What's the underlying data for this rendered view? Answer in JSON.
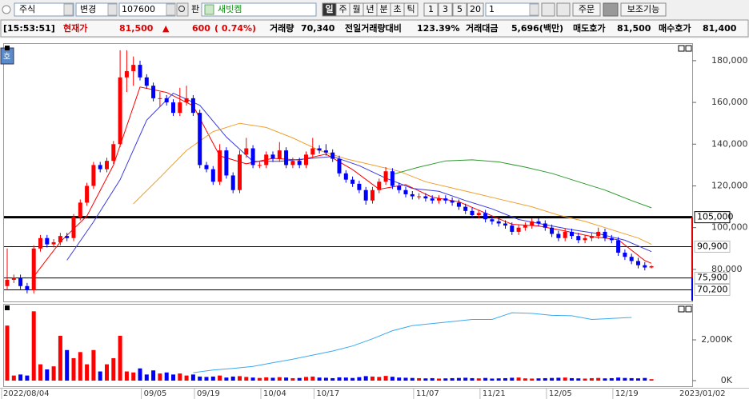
{
  "toolbar": {
    "market": "주식",
    "change": "변경",
    "code": "107600",
    "pan": "판",
    "name": "새빗켐",
    "periods": [
      "일",
      "주",
      "월",
      "년",
      "분",
      "초",
      "틱"
    ],
    "intervals": [
      "1",
      "3",
      "5",
      "20"
    ],
    "count": "1",
    "order": "주문",
    "aux": "보조기능"
  },
  "info_bar": {
    "time": "[15:53:51]",
    "price_label": "현재가",
    "price": "81,500",
    "arrow": "▲",
    "change": "600",
    "change_pct": "( 0.74%)",
    "volume_label": "거래량",
    "volume": "70,340",
    "prev_ratio_label": "전일거래량대비",
    "prev_ratio": "123.39%",
    "amount_label": "거래대금",
    "amount": "5,696(백만)",
    "ask_label": "매도호가",
    "ask": "81,500",
    "bid_label": "매수호가",
    "bid": "81,400"
  },
  "side_button": "호",
  "chart_data": [
    {
      "type": "candlestick",
      "up_color": "#ff0000",
      "down_color": "#0000ff",
      "ylim": [
        65400,
        188000
      ],
      "yticks": [
        {
          "value": 180000,
          "label": "180,000"
        },
        {
          "value": 160000,
          "label": "160,000"
        },
        {
          "value": 140000,
          "label": "140,000"
        },
        {
          "value": 120000,
          "label": "120,000"
        },
        {
          "value": 100000,
          "label": "100,000"
        },
        {
          "value": 80000,
          "label": "80,000"
        }
      ],
      "levels": [
        {
          "value": 105000,
          "label": "105,000"
        },
        {
          "value": 90900,
          "label": "90,900"
        },
        {
          "value": 75900,
          "label": "75,900"
        },
        {
          "value": 70200,
          "label": "70,200"
        }
      ],
      "candles": [
        [
          72000,
          90000,
          70000,
          75000
        ],
        [
          75000,
          77500,
          73500,
          76000
        ],
        [
          76000,
          77500,
          70500,
          72000
        ],
        [
          72000,
          73500,
          68500,
          70000
        ],
        [
          70000,
          91500,
          68500,
          90000
        ],
        [
          90000,
          96500,
          88500,
          95000
        ],
        [
          95000,
          96500,
          90500,
          92000
        ],
        [
          92000,
          94500,
          90500,
          93000
        ],
        [
          93000,
          97500,
          91500,
          96000
        ],
        [
          96000,
          97500,
          93500,
          95000
        ],
        [
          95000,
          106500,
          93500,
          105000
        ],
        [
          105000,
          113500,
          103500,
          112000
        ],
        [
          112000,
          121500,
          110500,
          120000
        ],
        [
          120000,
          131500,
          118500,
          130000
        ],
        [
          130000,
          131500,
          126500,
          128000
        ],
        [
          128000,
          133500,
          126500,
          132000
        ],
        [
          132000,
          141500,
          130500,
          140000
        ],
        [
          140000,
          185000,
          138500,
          172000
        ],
        [
          172000,
          185000,
          165000,
          175000
        ],
        [
          175000,
          182000,
          168000,
          178000
        ],
        [
          178000,
          180000,
          170500,
          172000
        ],
        [
          172000,
          173500,
          166500,
          168000
        ],
        [
          168000,
          169500,
          160500,
          162000
        ],
        [
          162000,
          165000,
          158000,
          162000
        ],
        [
          162000,
          163500,
          158500,
          160000
        ],
        [
          160000,
          161500,
          153500,
          155000
        ],
        [
          155000,
          167000,
          153500,
          160000
        ],
        [
          160000,
          168000,
          158500,
          162000
        ],
        [
          162000,
          163500,
          153500,
          155000
        ],
        [
          155000,
          156500,
          128500,
          130000
        ],
        [
          130000,
          131500,
          126500,
          128000
        ],
        [
          128000,
          129500,
          120500,
          122000
        ],
        [
          122000,
          140000,
          120500,
          137000
        ],
        [
          137000,
          138500,
          123500,
          125000
        ],
        [
          125000,
          126500,
          116500,
          118000
        ],
        [
          118000,
          137000,
          116500,
          135000
        ],
        [
          135000,
          143000,
          133500,
          138000
        ],
        [
          138000,
          139500,
          128500,
          130000
        ],
        [
          130000,
          131500,
          128500,
          130000
        ],
        [
          130000,
          136500,
          128500,
          135000
        ],
        [
          135000,
          136500,
          131500,
          133000
        ],
        [
          133000,
          141000,
          131500,
          137000
        ],
        [
          137000,
          138500,
          128500,
          130000
        ],
        [
          130000,
          133500,
          128500,
          132000
        ],
        [
          132000,
          133500,
          128500,
          130000
        ],
        [
          130000,
          136500,
          128500,
          135000
        ],
        [
          135000,
          143000,
          133500,
          138000
        ],
        [
          138000,
          139500,
          135500,
          137000
        ],
        [
          137000,
          140000,
          134500,
          136000
        ],
        [
          136000,
          137500,
          131500,
          133000
        ],
        [
          133000,
          134500,
          124500,
          126000
        ],
        [
          126000,
          127500,
          121500,
          123000
        ],
        [
          123000,
          124500,
          119500,
          121000
        ],
        [
          121000,
          122500,
          116500,
          118000
        ],
        [
          118000,
          119500,
          111000,
          113000
        ],
        [
          113000,
          119500,
          111500,
          118000
        ],
        [
          118000,
          123500,
          116500,
          122000
        ],
        [
          122000,
          129000,
          120500,
          127000
        ],
        [
          127000,
          128500,
          118500,
          120000
        ],
        [
          120000,
          121500,
          116500,
          118000
        ],
        [
          118000,
          119500,
          114500,
          116000
        ],
        [
          116000,
          117500,
          113500,
          115000
        ],
        [
          115000,
          116500,
          113500,
          115000
        ],
        [
          115000,
          116500,
          112500,
          114000
        ],
        [
          114000,
          115500,
          111500,
          113000
        ],
        [
          113000,
          115500,
          111500,
          114000
        ],
        [
          114000,
          115500,
          111500,
          113000
        ],
        [
          113000,
          114500,
          110500,
          112000
        ],
        [
          112000,
          113500,
          108500,
          110000
        ],
        [
          110000,
          111500,
          106500,
          108000
        ],
        [
          108000,
          109500,
          104500,
          106000
        ],
        [
          106000,
          108500,
          104500,
          107000
        ],
        [
          107000,
          108500,
          102500,
          104000
        ],
        [
          104000,
          105500,
          101500,
          103000
        ],
        [
          103000,
          104500,
          100500,
          102000
        ],
        [
          102000,
          103500,
          99500,
          101000
        ],
        [
          101000,
          102500,
          96500,
          98000
        ],
        [
          98000,
          101500,
          96500,
          100000
        ],
        [
          100000,
          102500,
          98500,
          101000
        ],
        [
          101000,
          104500,
          99500,
          103000
        ],
        [
          103000,
          104500,
          100500,
          102000
        ],
        [
          102000,
          103500,
          98500,
          100000
        ],
        [
          100000,
          101500,
          95500,
          97000
        ],
        [
          97000,
          98500,
          93500,
          95000
        ],
        [
          95000,
          99500,
          93500,
          98000
        ],
        [
          98000,
          99500,
          94500,
          96000
        ],
        [
          96000,
          97500,
          92500,
          94000
        ],
        [
          94000,
          96500,
          92500,
          95000
        ],
        [
          95000,
          97500,
          93500,
          96000
        ],
        [
          96000,
          100000,
          94500,
          98000
        ],
        [
          98000,
          99500,
          93500,
          95000
        ],
        [
          95000,
          96500,
          92500,
          94000
        ],
        [
          94000,
          95500,
          86500,
          88000
        ],
        [
          88000,
          89500,
          84500,
          86000
        ],
        [
          86000,
          87500,
          82500,
          84000
        ],
        [
          84000,
          85500,
          80500,
          82000
        ],
        [
          82000,
          83500,
          79500,
          80900
        ],
        [
          80900,
          82000,
          80500,
          81500
        ]
      ],
      "series": [
        {
          "color": "#ff0000",
          "x": [
            4,
            8,
            12,
            16,
            20,
            24,
            28,
            32,
            36,
            40,
            44,
            48,
            52,
            56,
            60,
            64,
            68,
            72,
            76,
            80,
            84,
            88,
            92,
            96,
            97
          ],
          "values": [
            76600,
            93200,
            105600,
            130000,
            167400,
            164800,
            158400,
            134400,
            130600,
            133200,
            132400,
            135200,
            127800,
            118400,
            120600,
            114600,
            112400,
            107000,
            101600,
            100800,
            98400,
            95800,
            94200,
            84200,
            82900
          ]
        },
        {
          "color": "#3a3ae0",
          "x": [
            9,
            13,
            17,
            21,
            25,
            29,
            33,
            37,
            41,
            45,
            49,
            53,
            57,
            61,
            65,
            69,
            73,
            77,
            81,
            85,
            89,
            93,
            97
          ],
          "values": [
            84400,
            102800,
            123000,
            151500,
            164400,
            158600,
            143400,
            131800,
            131800,
            133000,
            134100,
            129700,
            123700,
            118800,
            117400,
            113000,
            109000,
            103900,
            101400,
            99000,
            97100,
            94000,
            88500
          ]
        },
        {
          "color": "#f0a030",
          "x": [
            19,
            23,
            27,
            31,
            35,
            39,
            43,
            47,
            51,
            55,
            59,
            63,
            67,
            71,
            75,
            79,
            83,
            87,
            91,
            95,
            97
          ],
          "values": [
            111400,
            124000,
            137000,
            146000,
            150000,
            148000,
            143000,
            137000,
            133000,
            130000,
            127000,
            122000,
            119000,
            116000,
            113000,
            110000,
            106000,
            103000,
            99000,
            95000,
            92000
          ]
        },
        {
          "color": "#2e9a2e",
          "x": [
            58,
            62,
            66,
            70,
            74,
            78,
            82,
            86,
            90,
            94,
            97
          ],
          "values": [
            125500,
            129000,
            132000,
            132500,
            131500,
            129000,
            126000,
            122000,
            118000,
            113000,
            109500
          ]
        }
      ]
    },
    {
      "type": "bar",
      "categories": [
        "2022/08/04",
        null,
        null,
        null,
        null,
        null,
        null,
        null,
        null,
        null,
        null,
        null,
        null,
        null,
        null,
        null,
        null,
        null,
        null,
        null,
        null,
        null,
        "09/05",
        null,
        null,
        null,
        null,
        null,
        null,
        null,
        "09/19",
        null,
        null,
        null,
        null,
        null,
        null,
        null,
        null,
        null,
        "10/04",
        null,
        null,
        null,
        null,
        null,
        null,
        null,
        "10/17",
        null,
        null,
        null,
        null,
        null,
        null,
        null,
        null,
        null,
        null,
        null,
        null,
        null,
        null,
        "11/07",
        null,
        null,
        null,
        null,
        null,
        null,
        null,
        null,
        null,
        "11/21",
        null,
        null,
        null,
        null,
        null,
        null,
        null,
        null,
        null,
        "12/05",
        null,
        null,
        null,
        null,
        null,
        null,
        null,
        null,
        null,
        "12/19",
        null,
        null,
        null,
        null
      ],
      "values": [
        2700,
        250,
        300,
        250,
        3400,
        800,
        550,
        700,
        2200,
        1500,
        1100,
        1400,
        800,
        1500,
        450,
        800,
        1100,
        2200,
        450,
        400,
        600,
        300,
        500,
        350,
        400,
        300,
        350,
        250,
        300,
        200,
        180,
        200,
        250,
        150,
        200,
        220,
        180,
        150,
        130,
        160,
        140,
        170,
        150,
        120,
        130,
        180,
        200,
        150,
        140,
        120,
        160,
        150,
        130,
        170,
        220,
        200,
        180,
        230,
        190,
        150,
        140,
        130,
        120,
        110,
        120,
        100,
        110,
        120,
        130,
        140,
        120,
        110,
        130,
        100,
        110,
        120,
        140,
        150,
        110,
        100,
        110,
        120,
        130,
        140,
        150,
        120,
        110,
        100,
        120,
        130,
        110,
        120,
        150,
        130,
        120,
        110,
        130,
        70
      ],
      "ylim": [
        -235,
        3570
      ],
      "yticks": [
        {
          "value": 2000,
          "label": "2,000K"
        },
        {
          "value": 0,
          "label": "0K"
        }
      ],
      "series": [
        {
          "color": "#3aaaf0",
          "x": [
            28,
            31,
            34,
            37,
            40,
            43,
            46,
            49,
            52,
            55,
            58,
            61,
            64,
            67,
            70,
            73,
            76,
            79,
            82,
            85,
            88,
            91,
            94
          ],
          "values": [
            390,
            520,
            600,
            700,
            880,
            1050,
            1250,
            1450,
            1700,
            2050,
            2450,
            2700,
            2800,
            2900,
            3000,
            3000,
            3330,
            3300,
            3200,
            3180,
            3000,
            3050,
            3100
          ]
        }
      ],
      "end_label": "2023/01/02"
    }
  ]
}
